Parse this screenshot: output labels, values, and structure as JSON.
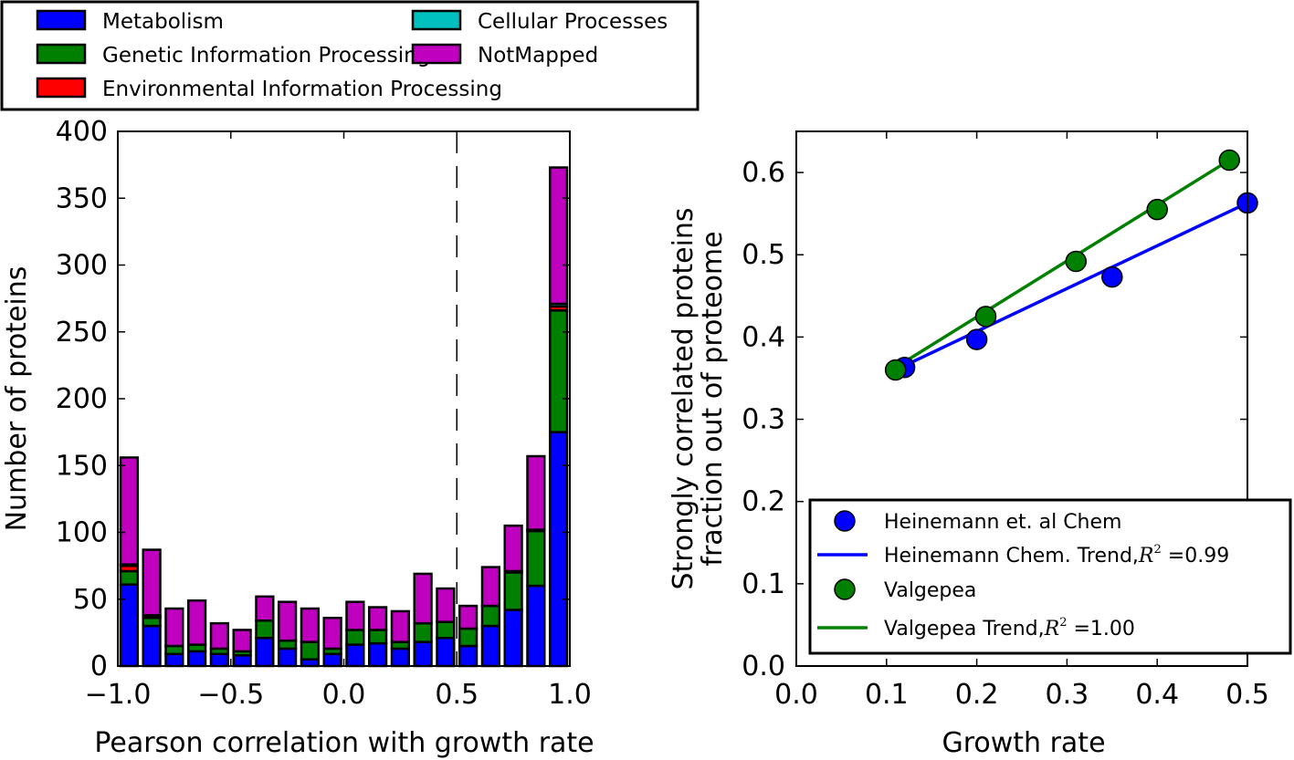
{
  "chart_data": [
    {
      "type": "bar",
      "stacked": true,
      "xlabel": "Pearson correlation with growth rate",
      "ylabel": "Number of proteins",
      "xlim": [
        -1.0,
        1.0
      ],
      "ylim": [
        0,
        400
      ],
      "xticks": [
        "−1.0",
        "−0.5",
        "0.0",
        "0.5",
        "1.0"
      ],
      "xtick_values": [
        -1.0,
        -0.5,
        0.0,
        0.5,
        1.0
      ],
      "yticks": [
        "0",
        "50",
        "100",
        "150",
        "200",
        "250",
        "300",
        "350",
        "400"
      ],
      "ytick_values": [
        0,
        50,
        100,
        150,
        200,
        250,
        300,
        350,
        400
      ],
      "vline_x": 0.5,
      "vline_style": "dashed",
      "bin_edges": [
        -1.0,
        -0.9,
        -0.8,
        -0.7,
        -0.6,
        -0.5,
        -0.4,
        -0.3,
        -0.2,
        -0.1,
        0.0,
        0.1,
        0.2,
        0.3,
        0.4,
        0.5,
        0.6,
        0.7,
        0.8,
        0.9,
        1.0
      ],
      "series": [
        {
          "name": "Metabolism",
          "color": "#0000ff",
          "values": [
            61,
            30,
            9,
            11,
            9,
            8,
            21,
            13,
            5,
            9,
            16,
            17,
            13,
            18,
            21,
            15,
            30,
            42,
            60,
            175
          ]
        },
        {
          "name": "Genetic Information Processing",
          "color": "#008000",
          "values": [
            10,
            6,
            6,
            5,
            4,
            3,
            13,
            6,
            13,
            4,
            11,
            10,
            5,
            14,
            12,
            13,
            15,
            28,
            41,
            91
          ]
        },
        {
          "name": "Environmental Information Processing",
          "color": "#ff0000",
          "values": [
            4,
            1,
            0,
            0,
            0,
            0,
            0,
            0,
            0,
            0,
            0,
            0,
            0,
            0,
            0,
            0,
            0,
            0,
            0,
            3
          ]
        },
        {
          "name": "Cellular Processes",
          "color": "#00bfbf",
          "values": [
            1,
            1,
            0,
            0,
            0,
            0,
            0,
            0,
            0,
            0,
            0,
            0,
            0,
            0,
            0,
            0,
            0,
            1,
            1,
            2
          ]
        },
        {
          "name": "NotMapped",
          "color": "#bf00bf",
          "values": [
            80,
            49,
            28,
            33,
            19,
            16,
            18,
            29,
            25,
            23,
            21,
            17,
            23,
            37,
            25,
            17,
            29,
            34,
            55,
            102
          ]
        }
      ],
      "legend": {
        "placement": "top",
        "ncol": 2,
        "entries": [
          "Metabolism",
          "Cellular Processes",
          "Genetic Information Processing",
          "NotMapped",
          "Environmental Information Processing"
        ]
      }
    },
    {
      "type": "scatter",
      "xlabel": "Growth rate",
      "ylabel_lines": [
        "Strongly correlated proteins",
        "fraction out of proteome"
      ],
      "xlim": [
        0.0,
        0.5
      ],
      "ylim": [
        0.0,
        0.65
      ],
      "xticks": [
        "0.0",
        "0.1",
        "0.2",
        "0.3",
        "0.4",
        "0.5"
      ],
      "xtick_values": [
        0.0,
        0.1,
        0.2,
        0.3,
        0.4,
        0.5
      ],
      "yticks": [
        "0.0",
        "0.1",
        "0.2",
        "0.3",
        "0.4",
        "0.5",
        "0.6"
      ],
      "ytick_values": [
        0.0,
        0.1,
        0.2,
        0.3,
        0.4,
        0.5,
        0.6
      ],
      "series": [
        {
          "name": "Heinemann et. al Chem",
          "kind": "points",
          "color": "#0000ff",
          "x": [
            0.12,
            0.2,
            0.35,
            0.5
          ],
          "y": [
            0.363,
            0.397,
            0.473,
            0.563
          ]
        },
        {
          "name": "Valgepea",
          "kind": "points",
          "color": "#008000",
          "x": [
            0.11,
            0.21,
            0.31,
            0.4,
            0.48
          ],
          "y": [
            0.36,
            0.425,
            0.492,
            0.555,
            0.615
          ]
        },
        {
          "name": "Heinemann Chem. Trend",
          "kind": "line",
          "color": "#0000ff",
          "x": [
            0.11,
            0.5
          ],
          "y": [
            0.36,
            0.563
          ]
        },
        {
          "name": "Valgepea Trend",
          "kind": "line",
          "color": "#008000",
          "x": [
            0.11,
            0.48
          ],
          "y": [
            0.363,
            0.615
          ]
        }
      ],
      "legend": {
        "placement": "lower right",
        "entries": [
          {
            "label": "Heinemann et. al Chem",
            "marker": "circle",
            "color": "#0000ff"
          },
          {
            "label": "Heinemann Chem. Trend,",
            "r2_label": "=0.99",
            "marker": "line",
            "color": "#0000ff"
          },
          {
            "label": "Valgepea",
            "marker": "circle",
            "color": "#008000"
          },
          {
            "label": "Valgepea Trend,",
            "r2_label": "=1.00",
            "marker": "line",
            "color": "#008000"
          }
        ]
      }
    }
  ]
}
